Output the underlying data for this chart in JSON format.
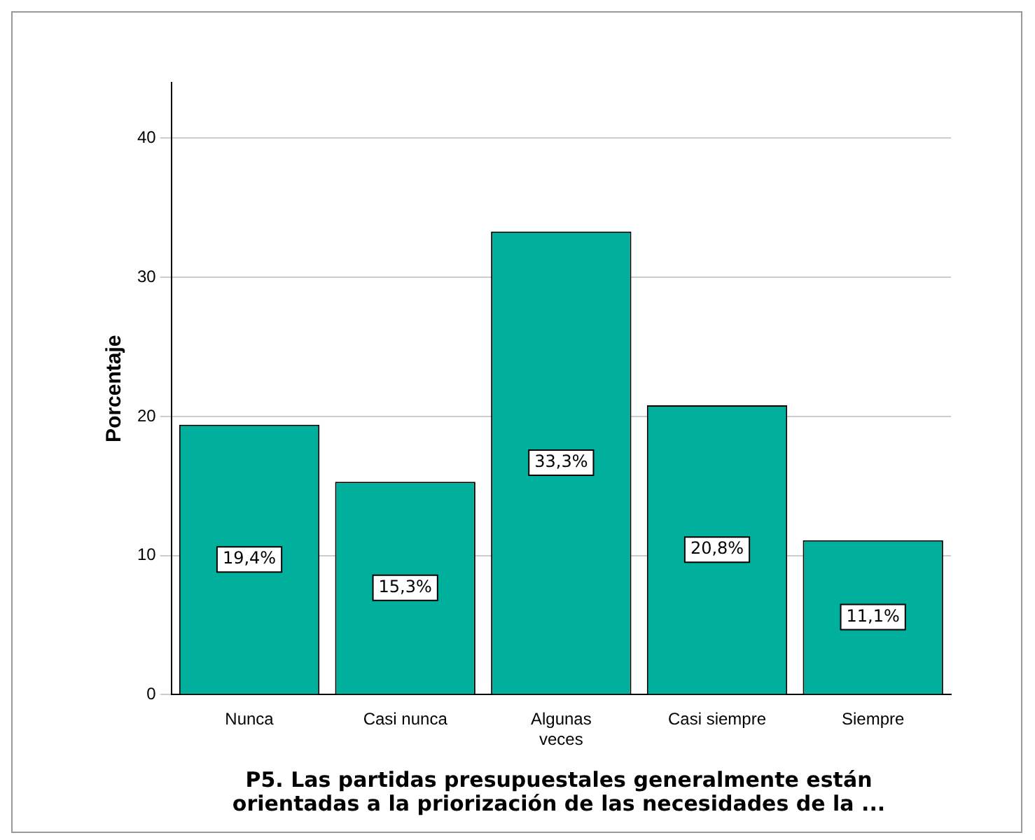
{
  "chart_data": {
    "type": "bar",
    "xlabel": "P5. Las partidas presupuestales generalmente están orientadas a la priorización de las necesidades de la ...",
    "ylabel": "Porcentaje",
    "categories": [
      "Nunca",
      "Casi nunca",
      "Algunas veces",
      "Casi siempre",
      "Siempre"
    ],
    "values": [
      19.4,
      15.3,
      33.3,
      20.8,
      11.1
    ],
    "color": "#00b09c",
    "value_labels": [
      "19,4%",
      "15,3%",
      "33,3%",
      "20,8%",
      "11,1%"
    ],
    "ylim": [
      0,
      44
    ],
    "yticks": [
      0,
      10,
      20,
      30,
      40
    ],
    "grid": "y"
  }
}
